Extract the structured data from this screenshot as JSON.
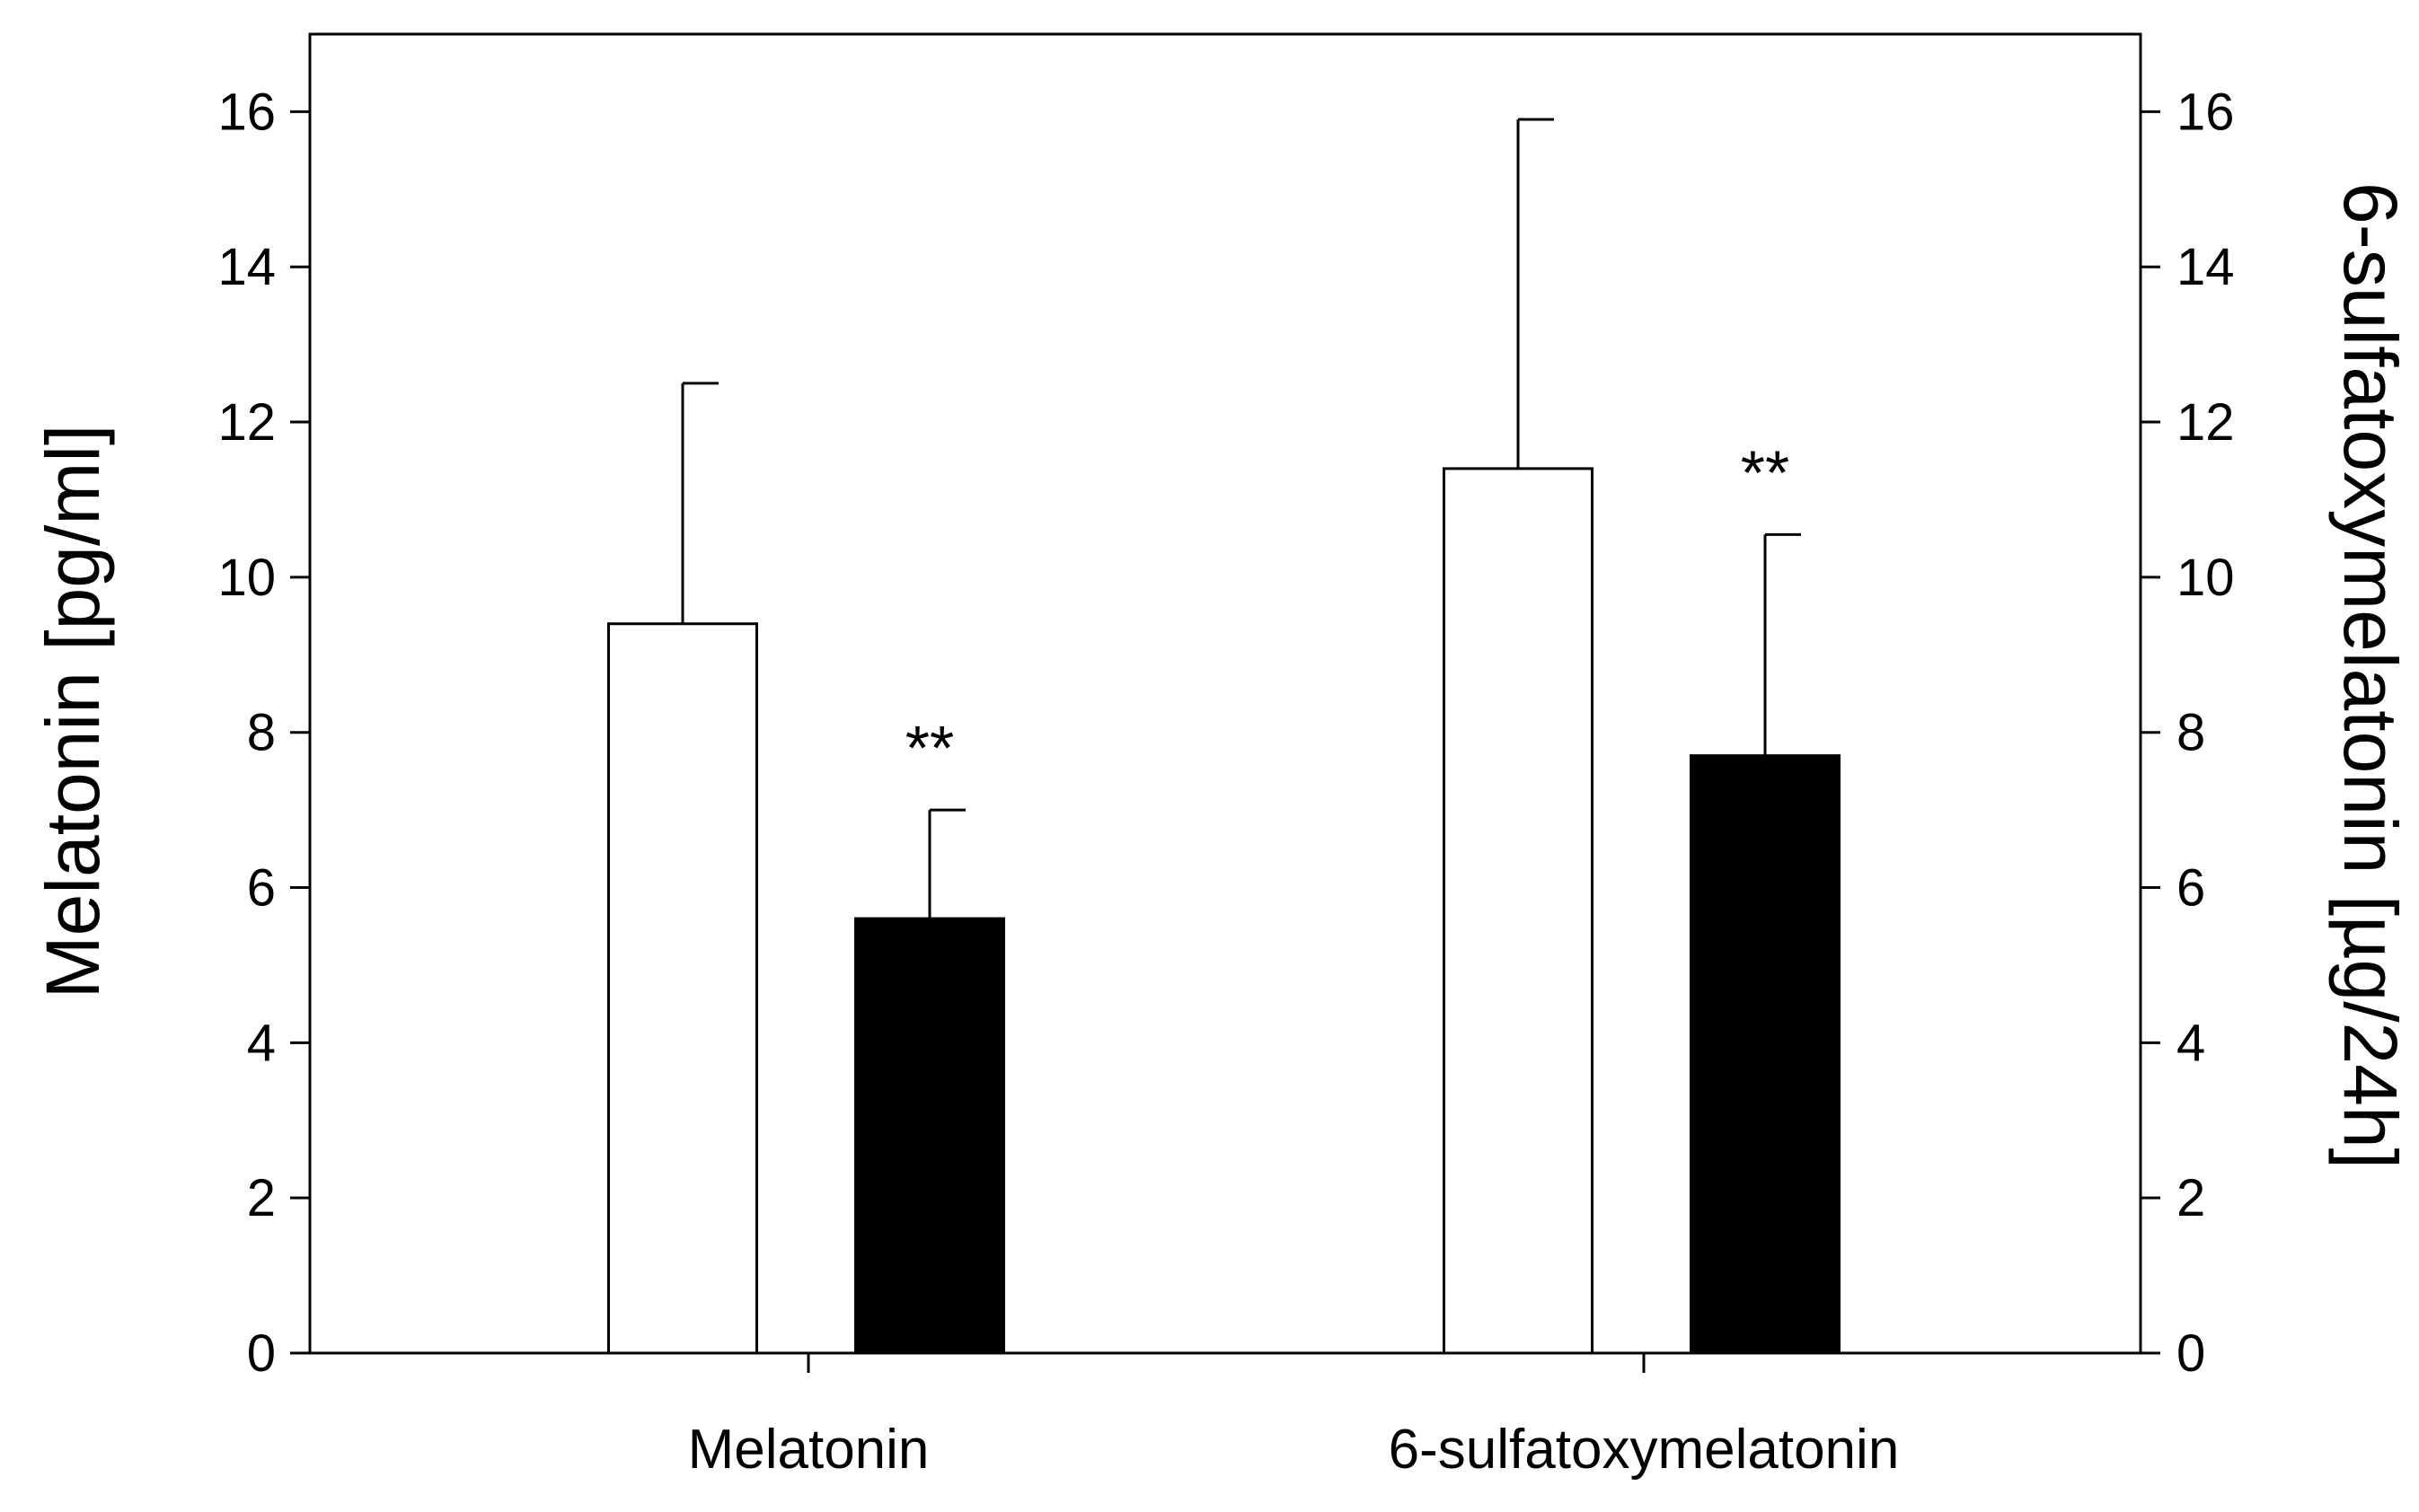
{
  "chart_data": {
    "type": "bar",
    "categories": [
      "Melatonin",
      "6-sulfatoxymelatonin"
    ],
    "series": [
      {
        "name": "",
        "fill": "#ffffff",
        "values": [
          9.4,
          11.4
        ],
        "errors": [
          3.1,
          4.5
        ],
        "annotations": [
          "",
          ""
        ]
      },
      {
        "name": "",
        "fill": "#000000",
        "values": [
          5.6,
          7.7
        ],
        "errors": [
          1.4,
          2.85
        ],
        "annotations": [
          "**",
          "**"
        ]
      }
    ],
    "ylabel_left": "Melatonin [pg/ml]",
    "ylabel_right": "6-sulfatoxymelatonin [µg/24h]",
    "xlabel": "",
    "ylim": [
      0,
      17
    ],
    "yticks": [
      0,
      2,
      4,
      6,
      8,
      10,
      12,
      14,
      16
    ],
    "ytick_labels": [
      "0",
      "2",
      "4",
      "6",
      "8",
      "10",
      "12",
      "14",
      "16"
    ],
    "grid": false,
    "legend": "none"
  }
}
